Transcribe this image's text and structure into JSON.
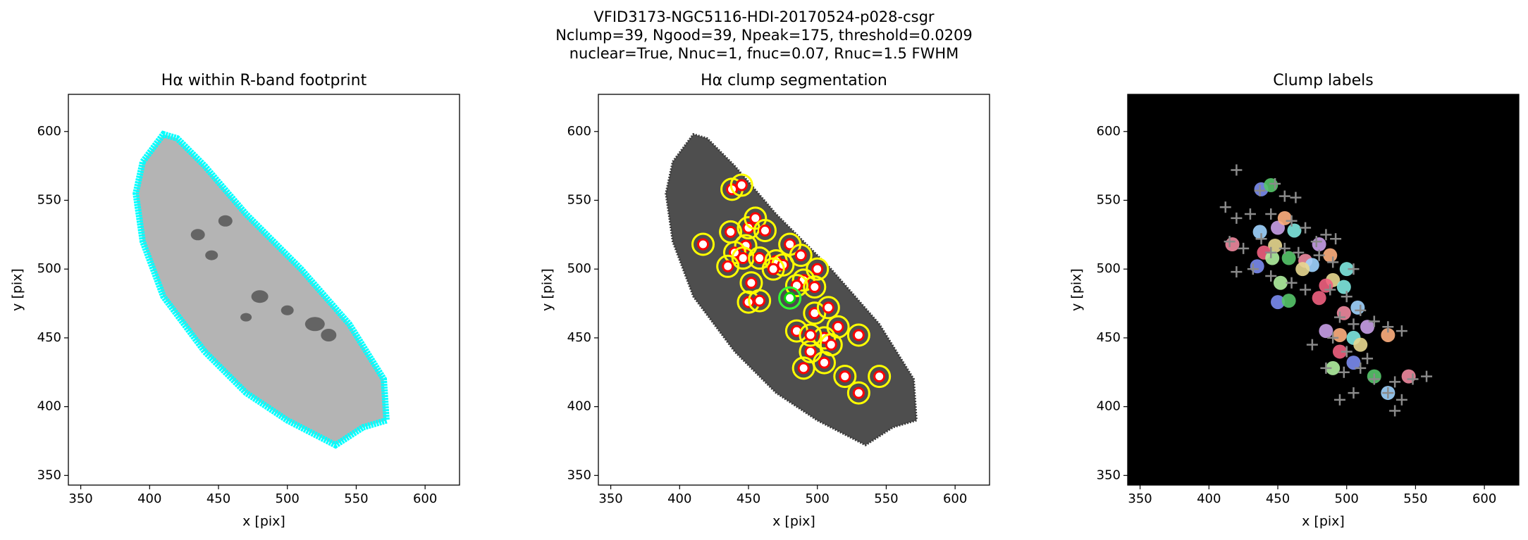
{
  "suptitle": [
    "VFID3173-NGC5116-HDI-20170524-p028-csgr",
    "Nclump=39, Ngood=39, Npeak=175, threshold=0.0209",
    "nuclear=True, Nnuc=1, fnuc=0.07, Rnuc=1.5 FWHM"
  ],
  "chart_data": [
    {
      "type": "image",
      "title": "Hα within R-band footprint",
      "xlabel": "x [pix]",
      "ylabel": "y [pix]",
      "xlim": [
        341,
        625
      ],
      "ylim": [
        343,
        627
      ],
      "xticks": [
        350,
        400,
        450,
        500,
        550,
        600
      ],
      "yticks": [
        350,
        400,
        450,
        500,
        550,
        600
      ],
      "background": "#ffffff",
      "footprint": {
        "fill": "#b4b4b4",
        "edge": "#00ffff"
      },
      "series": []
    },
    {
      "type": "scatter",
      "title": "Hα clump segmentation",
      "xlabel": "x [pix]",
      "ylabel": "y [pix]",
      "xlim": [
        341,
        625
      ],
      "ylim": [
        343,
        627
      ],
      "xticks": [
        350,
        400,
        450,
        500,
        550,
        600
      ],
      "yticks": [
        350,
        400,
        450,
        500,
        550,
        600
      ],
      "background": "#ffffff",
      "footprint": {
        "fill": "#4e4e4e",
        "edge": "#3a3a3a"
      },
      "series": [
        {
          "marker": "o",
          "color": "#ff0000",
          "contour": "#ffff00",
          "x": [
            438,
            445,
            417,
            437,
            450,
            455,
            462,
            448,
            440,
            446,
            435,
            458,
            470,
            475,
            480,
            488,
            500,
            490,
            485,
            452,
            450,
            458,
            498,
            508,
            515,
            530,
            505,
            510,
            495,
            490,
            505,
            520,
            545,
            530,
            485,
            495,
            498,
            468
          ],
          "y": [
            558,
            561,
            518,
            527,
            530,
            537,
            528,
            517,
            512,
            508,
            502,
            508,
            506,
            503,
            518,
            510,
            500,
            492,
            488,
            490,
            476,
            477,
            468,
            472,
            458,
            452,
            450,
            445,
            440,
            428,
            432,
            422,
            422,
            410,
            455,
            452,
            487,
            500
          ]
        },
        {
          "marker": "o",
          "color": "#00dd00",
          "contour": "#33ff33",
          "x": [
            480
          ],
          "y": [
            479
          ]
        }
      ]
    },
    {
      "type": "scatter",
      "title": "Clump labels",
      "xlabel": "x [pix]",
      "ylabel": "y [pix]",
      "xlim": [
        341,
        625
      ],
      "ylim": [
        343,
        627
      ],
      "xticks": [
        350,
        400,
        450,
        500,
        550,
        600
      ],
      "yticks": [
        350,
        400,
        450,
        500,
        550,
        600
      ],
      "background": "#000000",
      "series": [
        {
          "marker": "blob",
          "colors": [
            "#7b8cf0",
            "#56c56a",
            "#f08aa0",
            "#a0d4ff",
            "#c9a0e8",
            "#ffb080",
            "#80e8e0",
            "#e8d890",
            "#f06080",
            "#b0f0a0"
          ],
          "x": [
            438,
            445,
            417,
            437,
            450,
            455,
            462,
            448,
            440,
            446,
            435,
            458,
            470,
            475,
            480,
            488,
            500,
            490,
            485,
            452,
            450,
            458,
            498,
            508,
            515,
            530,
            505,
            510,
            495,
            490,
            505,
            520,
            545,
            530,
            485,
            495,
            498,
            468,
            480
          ],
          "y": [
            558,
            561,
            518,
            527,
            530,
            537,
            528,
            517,
            512,
            508,
            502,
            508,
            506,
            503,
            518,
            510,
            500,
            492,
            488,
            490,
            476,
            477,
            468,
            472,
            458,
            452,
            450,
            445,
            440,
            428,
            432,
            422,
            422,
            410,
            455,
            452,
            487,
            500,
            479
          ]
        },
        {
          "marker": "+",
          "color": "#8a8a8a",
          "x": [
            420,
            437,
            448,
            455,
            463,
            412,
            420,
            430,
            445,
            460,
            470,
            415,
            425,
            438,
            445,
            455,
            465,
            478,
            485,
            492,
            480,
            490,
            505,
            420,
            432,
            445,
            460,
            470,
            488,
            500,
            510,
            520,
            530,
            540,
            495,
            505,
            490,
            500,
            475,
            485,
            498,
            510,
            520,
            535,
            548,
            558,
            530,
            540,
            535,
            505,
            495,
            515
          ],
          "y": [
            572,
            557,
            562,
            553,
            552,
            545,
            537,
            540,
            540,
            535,
            530,
            520,
            515,
            522,
            512,
            515,
            512,
            520,
            525,
            522,
            510,
            505,
            500,
            498,
            500,
            495,
            490,
            485,
            485,
            480,
            470,
            462,
            458,
            455,
            465,
            460,
            450,
            440,
            445,
            428,
            425,
            428,
            420,
            418,
            420,
            422,
            410,
            405,
            397,
            410,
            405,
            435
          ]
        }
      ]
    }
  ]
}
